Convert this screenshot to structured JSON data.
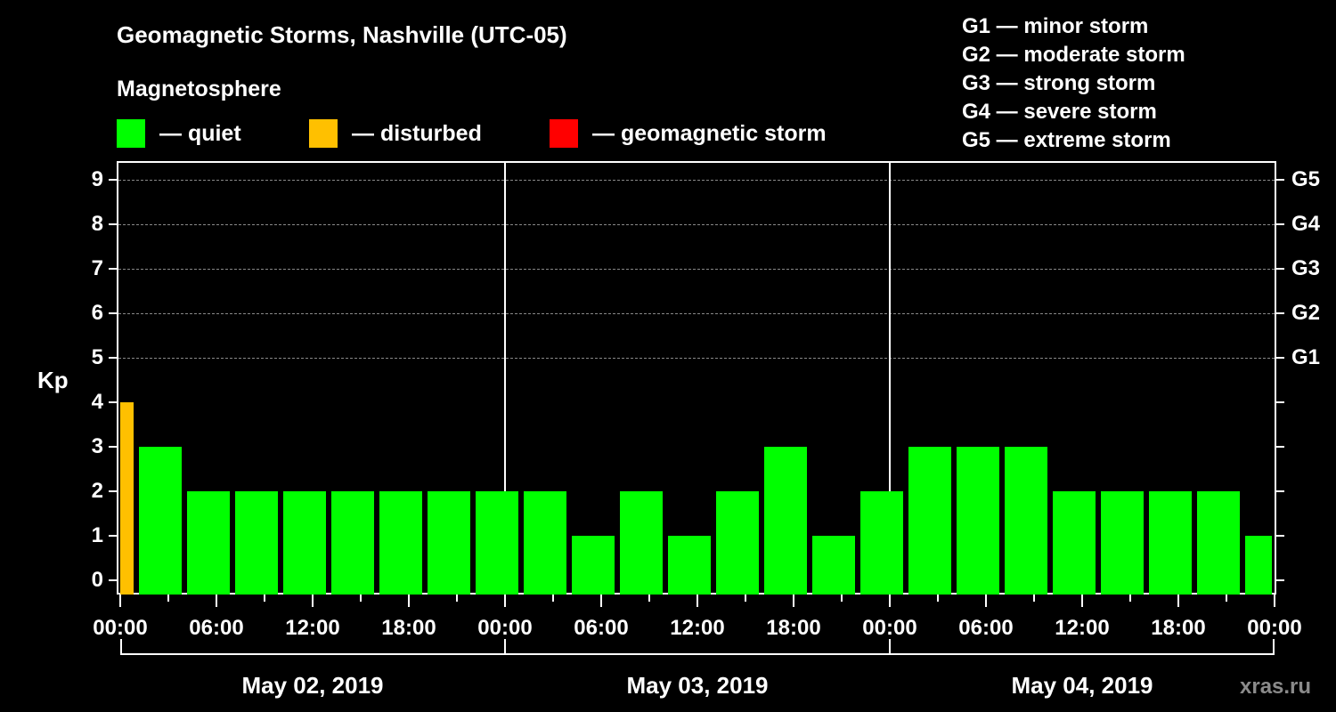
{
  "header": {
    "title": "Geomagnetic Storms, Nashville (UTC-05)",
    "subtitle": "Magnetosphere",
    "legend": [
      {
        "label": "— quiet",
        "color": "#00ff00"
      },
      {
        "label": "— disturbed",
        "color": "#ffc000"
      },
      {
        "label": "— geomagnetic storm",
        "color": "#ff0000"
      }
    ],
    "g_scale": [
      "G1 — minor storm",
      "G2 — moderate storm",
      "G3 — strong storm",
      "G4 — severe storm",
      "G5 — extreme storm"
    ]
  },
  "axes": {
    "ylabel": "Kp",
    "yticks": [
      "0",
      "1",
      "2",
      "3",
      "4",
      "5",
      "6",
      "7",
      "8",
      "9"
    ],
    "right_ticks": [
      "G1",
      "G2",
      "G3",
      "G4",
      "G5"
    ],
    "xticks": [
      "00:00",
      "06:00",
      "12:00",
      "18:00",
      "00:00",
      "06:00",
      "12:00",
      "18:00",
      "00:00",
      "06:00",
      "12:00",
      "18:00",
      "00:00"
    ],
    "dates": [
      "May 02, 2019",
      "May 03, 2019",
      "May 04, 2019"
    ]
  },
  "watermark": "xras.ru",
  "chart_data": {
    "type": "bar",
    "title": "Geomagnetic Storms, Nashville (UTC-05)",
    "subtitle": "Magnetosphere",
    "xlabel": "",
    "ylabel": "Kp",
    "ylim": [
      0,
      9
    ],
    "grid": "dashed horizontal at Kp 5-9",
    "legend": [
      "quiet",
      "disturbed",
      "geomagnetic storm"
    ],
    "legend_position": "top",
    "categories": [
      "May 02 00:00",
      "May 02 01:00",
      "May 02 04:00",
      "May 02 07:00",
      "May 02 10:00",
      "May 02 13:00",
      "May 02 16:00",
      "May 02 19:00",
      "May 02 22:00",
      "May 03 01:00",
      "May 03 04:00",
      "May 03 07:00",
      "May 03 10:00",
      "May 03 13:00",
      "May 03 16:00",
      "May 03 19:00",
      "May 03 22:00",
      "May 04 01:00",
      "May 04 04:00",
      "May 04 07:00",
      "May 04 10:00",
      "May 04 13:00",
      "May 04 16:00",
      "May 04 19:00",
      "May 04 22:00"
    ],
    "values": [
      4,
      3,
      2,
      2,
      2,
      2,
      2,
      2,
      2,
      2,
      1,
      2,
      1,
      2,
      3,
      1,
      2,
      3,
      3,
      3,
      2,
      2,
      2,
      2,
      1
    ],
    "status": [
      "disturbed",
      "quiet",
      "quiet",
      "quiet",
      "quiet",
      "quiet",
      "quiet",
      "quiet",
      "quiet",
      "quiet",
      "quiet",
      "quiet",
      "quiet",
      "quiet",
      "quiet",
      "quiet",
      "quiet",
      "quiet",
      "quiet",
      "quiet",
      "quiet",
      "quiet",
      "quiet",
      "quiet",
      "quiet"
    ],
    "colors": {
      "quiet": "#00ff00",
      "disturbed": "#ffc000",
      "storm": "#ff0000"
    },
    "right_axis": {
      "G1": 5,
      "G2": 6,
      "G3": 7,
      "G4": 8,
      "G5": 9
    }
  }
}
